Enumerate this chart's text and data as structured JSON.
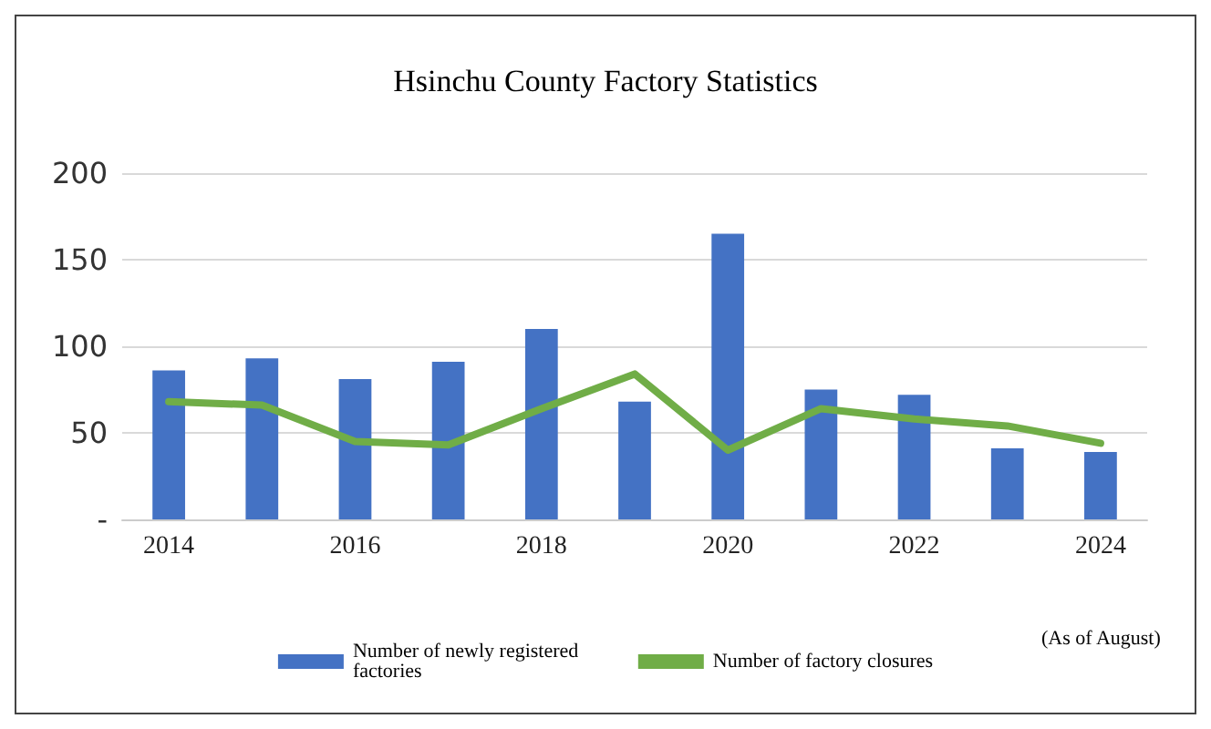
{
  "chart_data": {
    "type": "bar",
    "title": "Hsinchu County Factory Statistics",
    "categories": [
      "2014",
      null,
      "2016",
      null,
      "2018",
      null,
      "2020",
      null,
      "2022",
      null,
      "2024"
    ],
    "series": [
      {
        "name": "Number of newly registered factories",
        "color": "#4472c4",
        "values": [
          86,
          93,
          81,
          91,
          110,
          68,
          165,
          75,
          72,
          41,
          39
        ]
      },
      {
        "name": "Number of factory closures",
        "type": "line",
        "color": "#70ad47",
        "values": [
          68,
          66,
          45,
          43,
          64,
          84,
          40,
          64,
          58,
          54,
          44
        ]
      }
    ],
    "ylim": [
      0,
      200
    ],
    "yticks": [
      {
        "value": 0,
        "label": "-"
      },
      50,
      100,
      150,
      200
    ],
    "grid": "y",
    "legend": "bottom",
    "marker": "none",
    "line_style": "solid",
    "annotations": [
      "(As of August)"
    ]
  }
}
